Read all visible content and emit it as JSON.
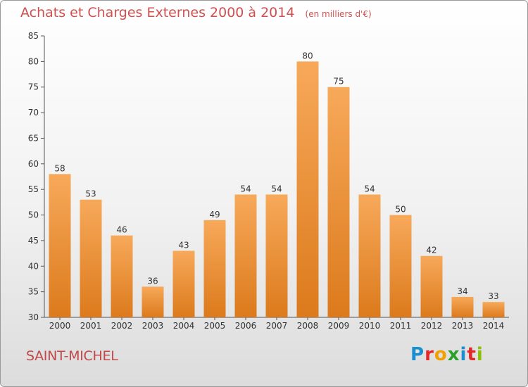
{
  "header": {
    "title": "Achats et Charges Externes 2000 à 2014",
    "subtitle": "(en milliers d'€)"
  },
  "commune": "SAINT-MICHEL",
  "logo": {
    "letters": [
      "P",
      "r",
      "o",
      "x",
      "i",
      "t",
      "i"
    ],
    "colors": [
      "#1a8fd0",
      "#e02828",
      "#f0a000",
      "#2aa02a",
      "#1a8fd0",
      "#e02828",
      "#8ac000"
    ]
  },
  "chart_data": {
    "type": "bar",
    "categories": [
      "2000",
      "2001",
      "2002",
      "2003",
      "2004",
      "2005",
      "2006",
      "2007",
      "2008",
      "2009",
      "2010",
      "2011",
      "2012",
      "2013",
      "2014"
    ],
    "values": [
      58,
      53,
      46,
      36,
      43,
      49,
      54,
      54,
      80,
      75,
      54,
      50,
      42,
      34,
      33
    ],
    "ylim": [
      30,
      85
    ],
    "yticks": [
      30,
      35,
      40,
      45,
      50,
      55,
      60,
      65,
      70,
      75,
      80,
      85
    ],
    "grid": false,
    "colors": {
      "bar_light": "#f7a95a",
      "bar_dark": "#dc7a1c",
      "axis": "#555555",
      "text": "#333333"
    }
  }
}
